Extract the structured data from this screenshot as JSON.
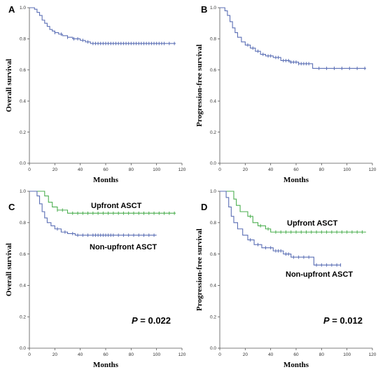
{
  "chart_data": [
    {
      "panel": "A",
      "type": "line",
      "xlabel": "Months",
      "ylabel": "Overall survival",
      "xlim": [
        0,
        120
      ],
      "ylim": [
        0,
        1.0
      ],
      "xticks": [
        "0",
        "20",
        "40",
        "60",
        "80",
        "100",
        "120"
      ],
      "yticks": [
        "0.0",
        "0.2",
        "0.4",
        "0.6",
        "0.8",
        "1.0"
      ],
      "p_value": "",
      "series": [
        {
          "name": "",
          "color": "#5b6fb5",
          "points": [
            [
              0,
              1.0
            ],
            [
              4,
              0.99
            ],
            [
              6,
              0.97
            ],
            [
              8,
              0.95
            ],
            [
              10,
              0.92
            ],
            [
              12,
              0.9
            ],
            [
              14,
              0.88
            ],
            [
              16,
              0.86
            ],
            [
              18,
              0.85
            ],
            [
              20,
              0.84
            ],
            [
              23,
              0.83
            ],
            [
              26,
              0.82
            ],
            [
              30,
              0.81
            ],
            [
              34,
              0.8
            ],
            [
              40,
              0.79
            ],
            [
              44,
              0.78
            ],
            [
              48,
              0.77
            ],
            [
              115,
              0.77
            ]
          ],
          "censored": [
            20,
            25,
            30,
            35,
            38,
            42,
            46,
            50,
            52,
            54,
            56,
            58,
            60,
            62,
            64,
            66,
            68,
            70,
            72,
            74,
            76,
            78,
            80,
            82,
            84,
            86,
            88,
            90,
            92,
            94,
            96,
            98,
            100,
            102,
            104,
            106,
            110,
            114
          ]
        }
      ]
    },
    {
      "panel": "B",
      "type": "line",
      "xlabel": "Months",
      "ylabel": "Progression-free survival",
      "xlim": [
        0,
        120
      ],
      "ylim": [
        0,
        1.0
      ],
      "xticks": [
        "0",
        "20",
        "40",
        "60",
        "80",
        "100",
        "120"
      ],
      "yticks": [
        "0.0",
        "0.2",
        "0.4",
        "0.6",
        "0.8",
        "1.0"
      ],
      "p_value": "",
      "series": [
        {
          "name": "",
          "color": "#5b6fb5",
          "points": [
            [
              0,
              1.0
            ],
            [
              4,
              0.98
            ],
            [
              6,
              0.95
            ],
            [
              8,
              0.91
            ],
            [
              10,
              0.87
            ],
            [
              12,
              0.84
            ],
            [
              14,
              0.81
            ],
            [
              17,
              0.78
            ],
            [
              20,
              0.76
            ],
            [
              24,
              0.74
            ],
            [
              28,
              0.72
            ],
            [
              32,
              0.7
            ],
            [
              36,
              0.69
            ],
            [
              42,
              0.68
            ],
            [
              48,
              0.66
            ],
            [
              55,
              0.65
            ],
            [
              62,
              0.64
            ],
            [
              72,
              0.64
            ],
            [
              73,
              0.61
            ],
            [
              115,
              0.61
            ]
          ],
          "censored": [
            22,
            26,
            30,
            34,
            38,
            40,
            44,
            46,
            50,
            52,
            54,
            56,
            58,
            60,
            62,
            64,
            66,
            68,
            70,
            78,
            84,
            90,
            96,
            102,
            108,
            114
          ]
        }
      ]
    },
    {
      "panel": "C",
      "type": "line",
      "xlabel": "Months",
      "ylabel": "Overall survival",
      "xlim": [
        0,
        120
      ],
      "ylim": [
        0,
        1.0
      ],
      "xticks": [
        "0",
        "20",
        "40",
        "60",
        "80",
        "100",
        "120"
      ],
      "yticks": [
        "0.0",
        "0.2",
        "0.4",
        "0.6",
        "0.8",
        "1.0"
      ],
      "p_value": "0.022",
      "series": [
        {
          "name": "Upfront ASCT",
          "color": "#4caf50",
          "points": [
            [
              0,
              1.0
            ],
            [
              10,
              1.0
            ],
            [
              12,
              0.97
            ],
            [
              15,
              0.93
            ],
            [
              18,
              0.9
            ],
            [
              22,
              0.88
            ],
            [
              28,
              0.88
            ],
            [
              30,
              0.86
            ],
            [
              115,
              0.86
            ]
          ],
          "censored": [
            22,
            26,
            34,
            38,
            42,
            46,
            50,
            54,
            58,
            62,
            66,
            70,
            74,
            78,
            82,
            86,
            90,
            94,
            98,
            102,
            106,
            110,
            114
          ]
        },
        {
          "name": "Non-upfront ASCT",
          "color": "#5b6fb5",
          "points": [
            [
              0,
              1.0
            ],
            [
              6,
              0.97
            ],
            [
              8,
              0.92
            ],
            [
              10,
              0.87
            ],
            [
              12,
              0.83
            ],
            [
              14,
              0.8
            ],
            [
              17,
              0.78
            ],
            [
              20,
              0.76
            ],
            [
              25,
              0.74
            ],
            [
              30,
              0.73
            ],
            [
              36,
              0.72
            ],
            [
              48,
              0.72
            ],
            [
              100,
              0.72
            ]
          ],
          "censored": [
            22,
            28,
            34,
            38,
            42,
            46,
            50,
            52,
            54,
            56,
            58,
            60,
            62,
            64,
            66,
            70,
            74,
            78,
            82,
            86,
            90,
            94,
            98
          ]
        }
      ]
    },
    {
      "panel": "D",
      "type": "line",
      "xlabel": "Months",
      "ylabel": "Progression-free survival",
      "xlim": [
        0,
        120
      ],
      "ylim": [
        0,
        1.0
      ],
      "xticks": [
        "0",
        "20",
        "40",
        "60",
        "80",
        "100",
        "120"
      ],
      "yticks": [
        "0.0",
        "0.2",
        "0.4",
        "0.6",
        "0.8",
        "1.0"
      ],
      "p_value": "0.012",
      "series": [
        {
          "name": "Upfront ASCT",
          "color": "#4caf50",
          "points": [
            [
              0,
              1.0
            ],
            [
              9,
              1.0
            ],
            [
              11,
              0.95
            ],
            [
              13,
              0.91
            ],
            [
              16,
              0.87
            ],
            [
              22,
              0.84
            ],
            [
              26,
              0.8
            ],
            [
              30,
              0.78
            ],
            [
              36,
              0.76
            ],
            [
              40,
              0.74
            ],
            [
              115,
              0.74
            ]
          ],
          "censored": [
            24,
            32,
            38,
            44,
            48,
            52,
            56,
            60,
            64,
            68,
            72,
            76,
            80,
            84,
            88,
            92,
            96,
            100,
            104,
            108,
            112
          ]
        },
        {
          "name": "Non-upfront ASCT",
          "color": "#5b6fb5",
          "points": [
            [
              0,
              1.0
            ],
            [
              5,
              0.96
            ],
            [
              7,
              0.9
            ],
            [
              9,
              0.84
            ],
            [
              11,
              0.8
            ],
            [
              14,
              0.76
            ],
            [
              18,
              0.72
            ],
            [
              22,
              0.69
            ],
            [
              27,
              0.66
            ],
            [
              33,
              0.64
            ],
            [
              42,
              0.62
            ],
            [
              50,
              0.6
            ],
            [
              56,
              0.58
            ],
            [
              72,
              0.58
            ],
            [
              74,
              0.53
            ],
            [
              95,
              0.53
            ]
          ],
          "censored": [
            24,
            30,
            36,
            40,
            44,
            46,
            48,
            52,
            54,
            58,
            62,
            66,
            70,
            76,
            80,
            84,
            88,
            92,
            95
          ]
        }
      ]
    }
  ],
  "text": {
    "p_prefix": "P",
    "p_eq": " = "
  }
}
